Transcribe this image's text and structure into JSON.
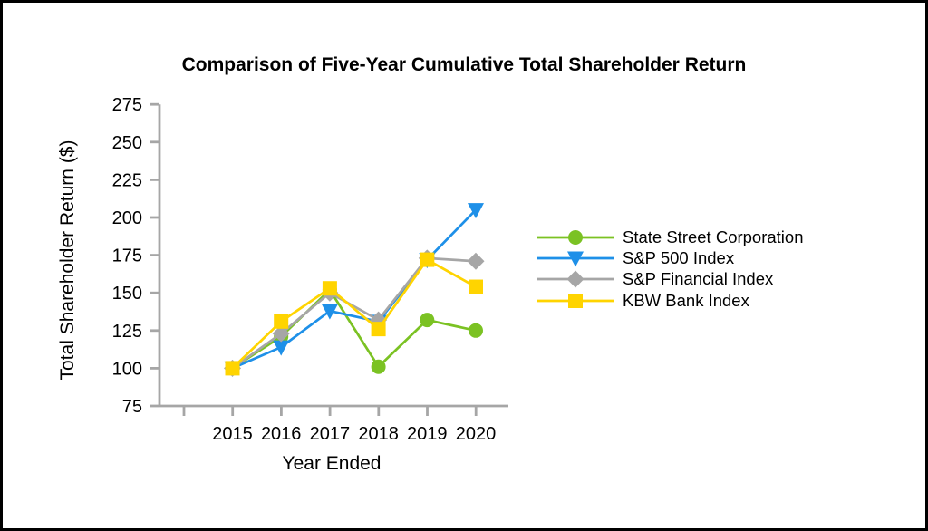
{
  "frame": {
    "background": "#FFFFFF",
    "border_color": "#000000"
  },
  "chart_data": {
    "type": "line",
    "title": "Comparison of Five-Year Cumulative Total Shareholder Return",
    "xlabel": "Year Ended",
    "ylabel": "Total Shareholder Return ($)",
    "categories": [
      "2015",
      "2016",
      "2017",
      "2018",
      "2019",
      "2020"
    ],
    "series": [
      {
        "name": "State Street Corporation",
        "marker": "circle",
        "color": "#7BC223",
        "values": [
          100,
          121,
          152,
          101,
          132,
          125
        ]
      },
      {
        "name": "S&P 500 Index",
        "marker": "triangle-down",
        "color": "#1E90E8",
        "values": [
          100,
          114,
          138,
          131,
          172,
          205
        ]
      },
      {
        "name": "S&P Financial Index",
        "marker": "diamond",
        "color": "#A6A6A6",
        "values": [
          100,
          123,
          150,
          132,
          173,
          171
        ]
      },
      {
        "name": "KBW Bank Index",
        "marker": "square",
        "color": "#FFD400",
        "values": [
          100,
          131,
          153,
          126,
          172,
          154
        ]
      }
    ],
    "ylim": [
      75,
      275
    ],
    "ytick_step": 25,
    "grid": false,
    "legend_position": "right-of-plot",
    "axis_color": "#A6A6A6",
    "text_color": "#000000"
  }
}
